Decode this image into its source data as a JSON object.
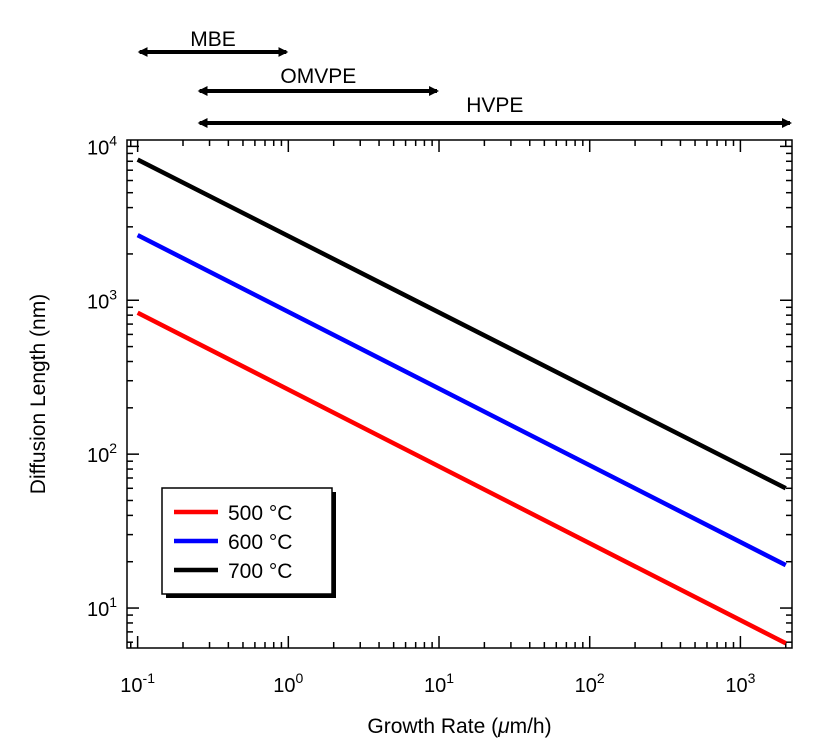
{
  "chart_data": {
    "type": "line",
    "title": "",
    "xlabel_prefix": "Growth Rate (",
    "xlabel_mu": "μ",
    "xlabel_suffix": "m/h)",
    "ylabel": "Diffusion Length (nm)",
    "x_scale": "log",
    "y_scale": "log",
    "xlim": [
      0.085,
      2200
    ],
    "ylim": [
      5.5,
      11000
    ],
    "x_ticks": [
      {
        "base": "10",
        "exp": "-1",
        "value": 0.1
      },
      {
        "base": "10",
        "exp": "0",
        "value": 1
      },
      {
        "base": "10",
        "exp": "1",
        "value": 10
      },
      {
        "base": "10",
        "exp": "2",
        "value": 100
      },
      {
        "base": "10",
        "exp": "3",
        "value": 1000
      }
    ],
    "y_ticks": [
      {
        "base": "10",
        "exp": "1",
        "value": 10
      },
      {
        "base": "10",
        "exp": "2",
        "value": 100
      },
      {
        "base": "10",
        "exp": "3",
        "value": 1000
      },
      {
        "base": "10",
        "exp": "4",
        "value": 10000
      }
    ],
    "grid": false,
    "legend_position": "bottom-left",
    "series": [
      {
        "name": "500 °C",
        "color": "#ff0000",
        "x": [
          0.1,
          2000
        ],
        "y": [
          830,
          5.9
        ]
      },
      {
        "name": "600 °C",
        "color": "#0000ff",
        "x": [
          0.1,
          2000
        ],
        "y": [
          2650,
          19
        ]
      },
      {
        "name": "700 °C",
        "color": "#000000",
        "x": [
          0.1,
          2000
        ],
        "y": [
          8200,
          60
        ]
      }
    ],
    "ranges": [
      {
        "label": "MBE",
        "x_start": 0.1,
        "x_end": 1.0,
        "arrow_start": true,
        "arrow_end": true
      },
      {
        "label": "OMVPE",
        "x_start": 0.25,
        "x_end": 10,
        "arrow_start": true,
        "arrow_end": true
      },
      {
        "label": "HVPE",
        "x_start": 0.25,
        "x_end": 2200,
        "arrow_start": true,
        "arrow_end": true
      }
    ]
  }
}
